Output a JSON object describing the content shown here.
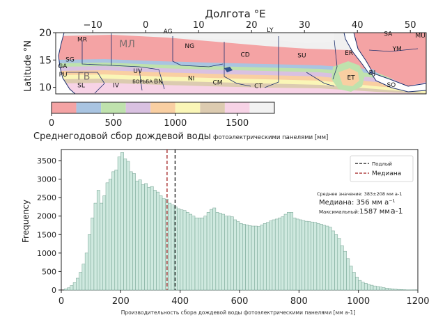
{
  "chart_data": [
    {
      "type": "heatmap",
      "title": "",
      "xlabel": "Долгота °E",
      "ylabel": "Latitude °N",
      "xlim": [
        -17,
        53
      ],
      "ylim": [
        8.8,
        20
      ],
      "xticks": [
        -10,
        0,
        10,
        20,
        30,
        40,
        50
      ],
      "yticks": [
        10,
        15,
        20
      ],
      "region_labels": [
        {
          "text": "MR",
          "lon": -12,
          "lat": 18.4
        },
        {
          "text": "МЛ",
          "lon": -3.5,
          "lat": 17.3
        },
        {
          "text": "AG",
          "lon": 4.2,
          "lat": 19.9
        },
        {
          "text": "LY",
          "lon": 23.5,
          "lat": 20.1
        },
        {
          "text": "NG",
          "lon": 8.3,
          "lat": 17.2
        },
        {
          "text": "CD",
          "lon": 18.8,
          "lat": 15.6
        },
        {
          "text": "SU",
          "lon": 29.5,
          "lat": 15.5
        },
        {
          "text": "ER",
          "lon": 38.4,
          "lat": 15.9
        },
        {
          "text": "SA",
          "lon": 45.8,
          "lat": 19.4
        },
        {
          "text": "YM",
          "lon": 47.5,
          "lat": 16.7
        },
        {
          "text": "MU",
          "lon": 51.9,
          "lat": 19.1
        },
        {
          "text": "SG",
          "lon": -14.3,
          "lat": 14.7
        },
        {
          "text": "GA",
          "lon": -15.7,
          "lat": 13.5
        },
        {
          "text": "PU",
          "lon": -15.6,
          "lat": 12.0
        },
        {
          "text": "SL",
          "lon": -12.2,
          "lat": 10.0
        },
        {
          "text": "ГВ",
          "lon": -11.7,
          "lat": 11.4
        },
        {
          "text": "UV",
          "lon": -1.5,
          "lat": 12.6
        },
        {
          "text": "БОРЬБА",
          "lon": -0.6,
          "lat": 10.8
        },
        {
          "text": "IV",
          "lon": -5.6,
          "lat": 10.0
        },
        {
          "text": "BN",
          "lon": 2.4,
          "lat": 10.7
        },
        {
          "text": "NI",
          "lon": 8.6,
          "lat": 11.3
        },
        {
          "text": "CM",
          "lon": 13.6,
          "lat": 10.5
        },
        {
          "text": "CT",
          "lon": 21.3,
          "lat": 9.9
        },
        {
          "text": "ET",
          "lon": 38.8,
          "lat": 11.4
        },
        {
          "text": "DJ",
          "lon": 42.8,
          "lat": 12.3
        },
        {
          "text": "SO",
          "lon": 46.4,
          "lat": 10.1
        }
      ],
      "colorbar": {
        "label": "Среднегодовой сбор дождевой воды фотоэлектрическими панелями [мм]",
        "label_main": "Среднегодовой сбор дождевой воды",
        "label_small": "фотоэлектрическими панелями [мм]",
        "range": [
          0,
          1800
        ],
        "ticks": [
          0,
          500,
          1000,
          1500
        ],
        "bins": [
          0,
          200,
          400,
          600,
          800,
          1000,
          1200,
          1400,
          1600,
          1800
        ],
        "colors": [
          "#f4a3a4",
          "#a9c4e1",
          "#bfe2ad",
          "#d9c1e1",
          "#f9cfa2",
          "#faf6b7",
          "#dccbb0",
          "#f7d3e6",
          "#f2f2f2"
        ]
      }
    },
    {
      "type": "bar",
      "title": "",
      "xlabel": "Производительность сбора дождевой воды фотоэлектрическими панелями [мм а-1]",
      "ylabel": "Frequency",
      "xlim": [
        0,
        1200
      ],
      "ylim": [
        0,
        3800
      ],
      "xticks": [
        0,
        200,
        400,
        600,
        800,
        1000,
        1200
      ],
      "yticks": [
        0,
        500,
        1000,
        1500,
        2000,
        2500,
        3000,
        3500
      ],
      "bin_width": 10,
      "bin_start": 10,
      "bar_color": "#cfe9df",
      "bar_edge": "#6f9f8e",
      "frequencies": [
        30,
        60,
        120,
        200,
        320,
        480,
        700,
        1000,
        1500,
        1950,
        2350,
        2700,
        2350,
        2550,
        2900,
        3000,
        3200,
        3250,
        3600,
        3720,
        3550,
        3480,
        3200,
        3150,
        2950,
        2980,
        2850,
        2880,
        2780,
        2800,
        2700,
        2650,
        2550,
        2470,
        2460,
        2350,
        2300,
        2250,
        2200,
        2170,
        2150,
        2100,
        2050,
        2000,
        1950,
        1950,
        1950,
        2000,
        2100,
        2180,
        2220,
        2100,
        2080,
        2050,
        2000,
        2000,
        1980,
        1900,
        1850,
        1800,
        1780,
        1760,
        1740,
        1730,
        1730,
        1720,
        1760,
        1800,
        1830,
        1870,
        1900,
        1920,
        1950,
        1980,
        2050,
        2100,
        2100,
        1950,
        1920,
        1900,
        1880,
        1860,
        1850,
        1840,
        1830,
        1800,
        1780,
        1750,
        1730,
        1700,
        1600,
        1500,
        1400,
        1200,
        1050,
        850,
        650,
        480,
        350,
        260,
        210,
        180,
        150,
        130,
        110,
        95,
        80,
        65,
        50,
        40,
        30,
        22,
        16,
        12,
        8,
        5,
        3,
        2,
        1
      ],
      "lines": [
        {
          "name": "Подлый",
          "x": 383,
          "color": "#111111"
        },
        {
          "name": "Медиана",
          "x": 356,
          "color": "#a11d1d"
        }
      ],
      "legend_placement": "top-right",
      "stats": {
        "mean": "Среднее значение: 383±208 мм а-1",
        "median": "Медиана: 356 мм а⁻¹",
        "max_label": "Максимальный:",
        "max_value": "1587 мм",
        "max_unit": "а-1"
      }
    }
  ]
}
